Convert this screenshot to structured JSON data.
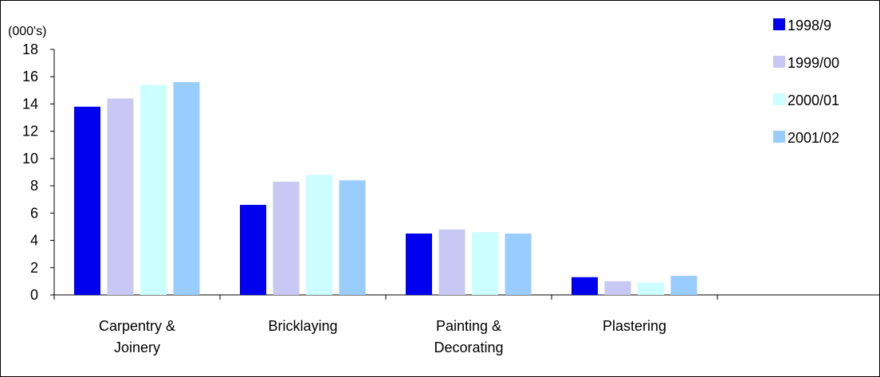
{
  "chart_data": {
    "type": "bar",
    "unit_label": "(000's)",
    "categories": [
      [
        "Carpentry &",
        "Joinery"
      ],
      [
        "Bricklaying"
      ],
      [
        "Painting &",
        "Decorating"
      ],
      [
        "Plastering"
      ]
    ],
    "series": [
      {
        "name": "1998/9",
        "color": "#0000ee",
        "values": [
          13.8,
          6.6,
          4.5,
          1.3
        ]
      },
      {
        "name": "1999/00",
        "color": "#c9c8f5",
        "values": [
          14.4,
          8.3,
          4.8,
          1.0
        ]
      },
      {
        "name": "2000/01",
        "color": "#ccffff",
        "values": [
          15.4,
          8.8,
          4.6,
          0.9
        ]
      },
      {
        "name": "2001/02",
        "color": "#99ccff",
        "values": [
          15.6,
          8.4,
          4.5,
          1.4
        ]
      }
    ],
    "ylim": [
      0,
      18
    ],
    "yticks": [
      0,
      2,
      4,
      6,
      8,
      10,
      12,
      14,
      16,
      18
    ],
    "grid": false,
    "legend_position": "top-right"
  }
}
